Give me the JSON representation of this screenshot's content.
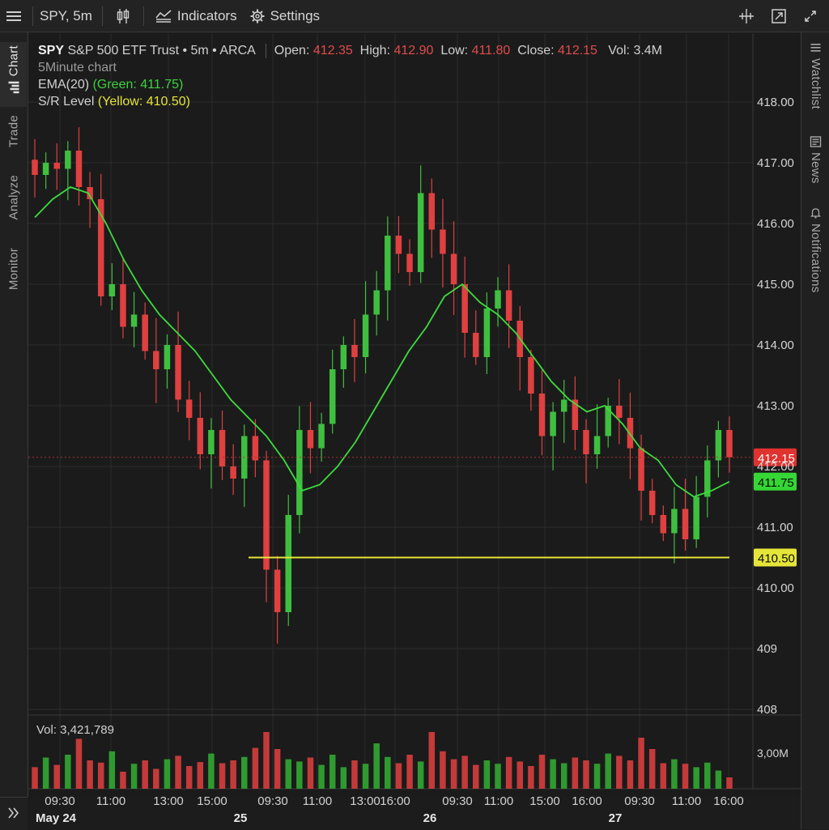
{
  "toolbar": {
    "symbol_interval": "SPY, 5m",
    "indicators_label": "Indicators",
    "settings_label": "Settings"
  },
  "left_rail": {
    "tabs": [
      "Chart",
      "Trade",
      "Analyze",
      "Monitor"
    ]
  },
  "right_rail": {
    "tabs": [
      "Watchlist",
      "News",
      "Notifications"
    ]
  },
  "legend": {
    "ticker": "SPY",
    "description": "S&P 500 ETF Trust • 5m • ARCA",
    "open_label": "Open:",
    "open_value": "412.35",
    "high_label": "High:",
    "high_value": "412.90",
    "low_label": "Low:",
    "low_value": "411.80",
    "close_label": "Close:",
    "close_value": "412.15",
    "vol_label": "Vol:",
    "vol_value": "3.4M",
    "chart_caption": "5Minute chart",
    "ema_label": "EMA(20)",
    "ema_detail": "(Green: 411.75)",
    "sr_label": "S/R Level",
    "sr_detail": "(Yellow: 410.50)"
  },
  "volume_readout": "Vol: 3,421,789",
  "colors": {
    "up": "#3fbf3f",
    "down": "#e04040",
    "ema": "#3ddc3d",
    "sr": "#e6e63a",
    "price_tag": "#e0322f",
    "ema_tag": "#35d635",
    "sr_tag": "#e6e63a"
  },
  "chart_data": {
    "type": "candlestick",
    "y_axis_ticks": [
      "418.00",
      "417.00",
      "416.00",
      "415.00",
      "414.00",
      "413.00",
      "412.00",
      "411.00",
      "410.00",
      "409",
      "408"
    ],
    "ylim": [
      407.9,
      418.6
    ],
    "volume_axis_tick": "3,00M",
    "x_tick_labels": [
      "09:30",
      "11:00",
      "13:00",
      "15:00",
      "09:30",
      "11:00",
      "13:00",
      "16:00",
      "09:30",
      "11:00",
      "15:00",
      "16:00",
      "09:30",
      "11:00",
      "16:00"
    ],
    "day_labels": [
      "May 24",
      "25",
      "26",
      "27"
    ],
    "last_price": "412.15",
    "ema_value": "411.75",
    "sr_level": "410.50",
    "sr_value": 410.5,
    "ema_path": [
      416.1,
      416.4,
      416.6,
      416.5,
      416.0,
      415.4,
      414.9,
      414.5,
      414.2,
      413.9,
      413.5,
      413.1,
      412.8,
      412.5,
      412.1,
      411.6,
      411.7,
      412.0,
      412.4,
      412.9,
      413.4,
      413.9,
      414.3,
      414.8,
      415.0,
      414.7,
      414.5,
      414.2,
      413.8,
      413.4,
      413.1,
      412.9,
      413.0,
      412.7,
      412.3,
      412.1,
      411.7,
      411.5,
      411.6,
      411.75
    ],
    "closes": [
      416.8,
      417.0,
      416.9,
      417.2,
      416.6,
      416.4,
      414.8,
      415.0,
      414.3,
      414.5,
      413.9,
      413.6,
      414.0,
      413.1,
      412.8,
      412.2,
      412.6,
      412.0,
      411.8,
      412.5,
      412.1,
      410.3,
      409.6,
      411.2,
      412.6,
      412.3,
      412.7,
      413.6,
      414.0,
      413.8,
      414.5,
      414.9,
      415.8,
      415.5,
      415.2,
      416.5,
      415.9,
      415.5,
      415.0,
      414.2,
      413.8,
      414.6,
      414.9,
      414.4,
      413.8,
      413.2,
      412.5,
      412.9,
      413.1,
      412.6,
      412.2,
      412.5,
      413.0,
      412.8,
      412.3,
      411.6,
      411.2,
      410.9,
      411.3,
      410.8,
      411.5,
      412.1,
      412.6,
      412.15
    ],
    "volumes": [
      0.38,
      0.55,
      0.42,
      0.6,
      0.88,
      0.5,
      0.46,
      0.66,
      0.3,
      0.44,
      0.5,
      0.35,
      0.52,
      0.58,
      0.4,
      0.47,
      0.62,
      0.45,
      0.5,
      0.56,
      0.72,
      1.0,
      0.7,
      0.52,
      0.48,
      0.55,
      0.42,
      0.6,
      0.38,
      0.5,
      0.44,
      0.8,
      0.56,
      0.45,
      0.6,
      0.48,
      1.0,
      0.66,
      0.52,
      0.58,
      0.42,
      0.5,
      0.44,
      0.56,
      0.48,
      0.4,
      0.6,
      0.52,
      0.45,
      0.55,
      0.5,
      0.44,
      0.62,
      0.58,
      0.5,
      0.9,
      0.7,
      0.45,
      0.52,
      0.44,
      0.38,
      0.46,
      0.32,
      0.2
    ]
  }
}
